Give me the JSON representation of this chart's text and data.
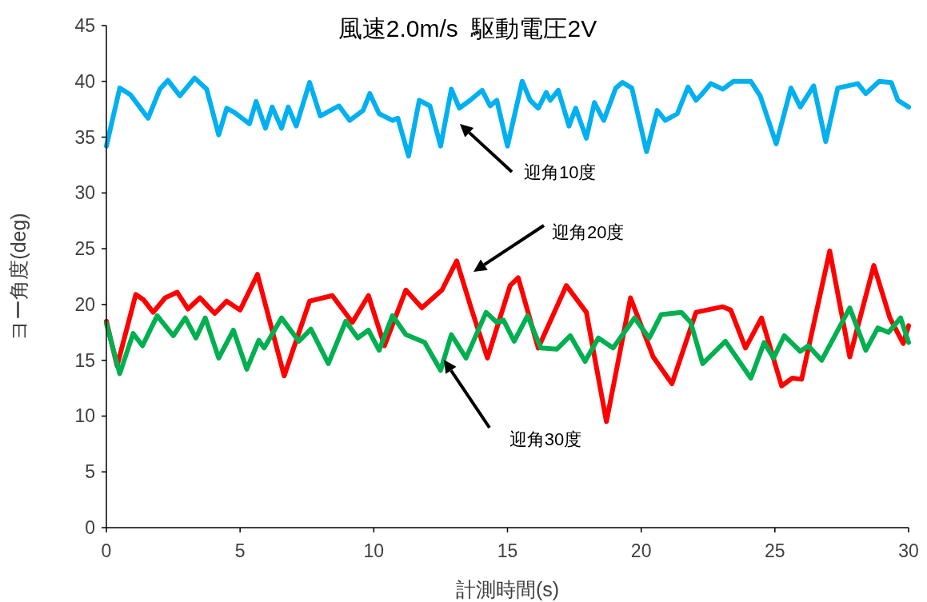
{
  "chart_data": {
    "type": "line",
    "title": "風速2.0m/s  駆動電圧2V",
    "xlabel": "計測時間(s)",
    "ylabel": "ヨー角度(deg)",
    "xlim": [
      0,
      30
    ],
    "ylim": [
      0,
      45
    ],
    "xticks": [
      0,
      5,
      10,
      15,
      20,
      25,
      30
    ],
    "yticks": [
      0,
      5,
      10,
      15,
      20,
      25,
      30,
      35,
      40,
      45
    ],
    "grid": false,
    "marker": "none",
    "line_style": "solid",
    "series": [
      {
        "color": "#00b0f0",
        "x": [
          0,
          0.5,
          0.9,
          1.56,
          2.0,
          2.3,
          2.75,
          3.3,
          3.75,
          4.2,
          4.5,
          4.8,
          5.35,
          5.6,
          5.95,
          6.2,
          6.55,
          6.8,
          7.1,
          7.6,
          8.0,
          8.7,
          9.1,
          9.6,
          9.85,
          10.2,
          10.7,
          10.9,
          11.3,
          11.7,
          12.1,
          12.5,
          12.9,
          13.2,
          13.6,
          14.05,
          14.35,
          14.6,
          15.0,
          15.55,
          15.85,
          16.15,
          16.45,
          16.6,
          16.9,
          17.3,
          17.55,
          17.95,
          18.25,
          18.6,
          19.05,
          19.3,
          19.65,
          20.2,
          20.6,
          20.9,
          21.35,
          21.75,
          22.05,
          22.25,
          22.6,
          23.05,
          23.45,
          24.1,
          24.45,
          25.05,
          25.6,
          25.95,
          26.45,
          26.9,
          27.35,
          28.1,
          28.4,
          28.9,
          29.35,
          29.6,
          30
        ],
        "values": [
          34.2,
          39.4,
          38.8,
          36.7,
          39.3,
          40.1,
          38.7,
          40.3,
          39.3,
          35.2,
          37.6,
          37.2,
          36.2,
          38.2,
          35.8,
          37.7,
          35.8,
          37.7,
          36.0,
          39.9,
          36.9,
          37.8,
          36.5,
          37.4,
          38.9,
          37.1,
          36.5,
          36.7,
          33.3,
          38.3,
          37.8,
          34.2,
          39.3,
          37.6,
          38.3,
          39.2,
          37.8,
          38.3,
          34.2,
          40.0,
          38.3,
          37.6,
          39.0,
          38.3,
          39.2,
          36.0,
          37.6,
          34.9,
          38.1,
          36.5,
          39.4,
          39.9,
          39.4,
          33.7,
          37.4,
          36.5,
          37.1,
          39.5,
          38.3,
          38.8,
          39.8,
          39.3,
          40.0,
          40.0,
          38.7,
          34.4,
          39.4,
          37.7,
          39.6,
          34.6,
          39.4,
          39.8,
          38.9,
          40.0,
          39.9,
          38.3,
          37.7
        ]
      },
      {
        "color": "#ff0000",
        "x": [
          0,
          0.4,
          1.1,
          1.4,
          1.75,
          2.2,
          2.65,
          3.05,
          3.5,
          4.05,
          4.5,
          5.0,
          5.65,
          6.1,
          6.65,
          7.6,
          8.45,
          9.2,
          9.8,
          10.4,
          11.2,
          11.8,
          12.55,
          13.1,
          13.65,
          14.25,
          15.1,
          15.4,
          16.15,
          17.2,
          17.95,
          18.7,
          19.6,
          20.45,
          21.15,
          22.05,
          23.05,
          23.35,
          23.9,
          24.5,
          25.25,
          25.65,
          26.0,
          27.05,
          27.8,
          28.7,
          29.3,
          29.8,
          30
        ],
        "values": [
          18.5,
          14.5,
          20.9,
          20.4,
          19.3,
          20.6,
          21.1,
          19.6,
          20.6,
          19.2,
          20.3,
          19.5,
          22.7,
          18.6,
          13.6,
          20.3,
          20.8,
          18.4,
          20.8,
          16.3,
          21.3,
          19.7,
          21.3,
          23.9,
          19.6,
          15.2,
          21.7,
          22.4,
          16.1,
          21.7,
          19.3,
          9.5,
          20.6,
          15.3,
          12.9,
          19.3,
          19.8,
          19.5,
          16.1,
          18.8,
          12.7,
          13.4,
          13.3,
          24.8,
          15.3,
          23.5,
          18.8,
          16.5,
          18.1
        ]
      },
      {
        "color": "#00b050",
        "x": [
          0,
          0.5,
          1.0,
          1.35,
          1.9,
          2.5,
          2.95,
          3.35,
          3.7,
          4.2,
          4.75,
          5.25,
          5.7,
          5.9,
          6.55,
          7.2,
          7.65,
          8.3,
          8.95,
          9.4,
          9.8,
          10.2,
          10.7,
          11.2,
          11.9,
          12.5,
          12.9,
          13.45,
          14.2,
          14.6,
          14.85,
          15.25,
          15.75,
          16.25,
          16.85,
          17.35,
          17.9,
          18.4,
          18.95,
          19.75,
          20.3,
          20.75,
          21.5,
          21.85,
          22.3,
          23.15,
          24.1,
          24.6,
          24.95,
          25.35,
          25.95,
          26.25,
          26.75,
          27.8,
          28.4,
          28.85,
          29.25,
          29.7,
          30
        ],
        "values": [
          18.3,
          13.8,
          17.4,
          16.3,
          19.0,
          17.2,
          18.8,
          17.0,
          18.8,
          15.2,
          17.7,
          14.2,
          16.8,
          16.1,
          18.8,
          16.7,
          17.8,
          14.7,
          18.5,
          17.0,
          17.7,
          15.9,
          19.0,
          17.3,
          16.6,
          14.1,
          17.3,
          15.2,
          19.3,
          18.4,
          18.6,
          16.7,
          19.0,
          16.1,
          16.0,
          17.2,
          14.9,
          17.0,
          16.1,
          18.8,
          17.0,
          19.1,
          19.3,
          18.4,
          14.7,
          16.7,
          13.4,
          16.6,
          15.2,
          17.2,
          15.8,
          16.3,
          15.0,
          19.7,
          15.9,
          17.9,
          17.5,
          18.8,
          16.6
        ]
      }
    ],
    "annotations": [
      "迎角10度",
      "迎角20度",
      "迎角30度"
    ]
  }
}
